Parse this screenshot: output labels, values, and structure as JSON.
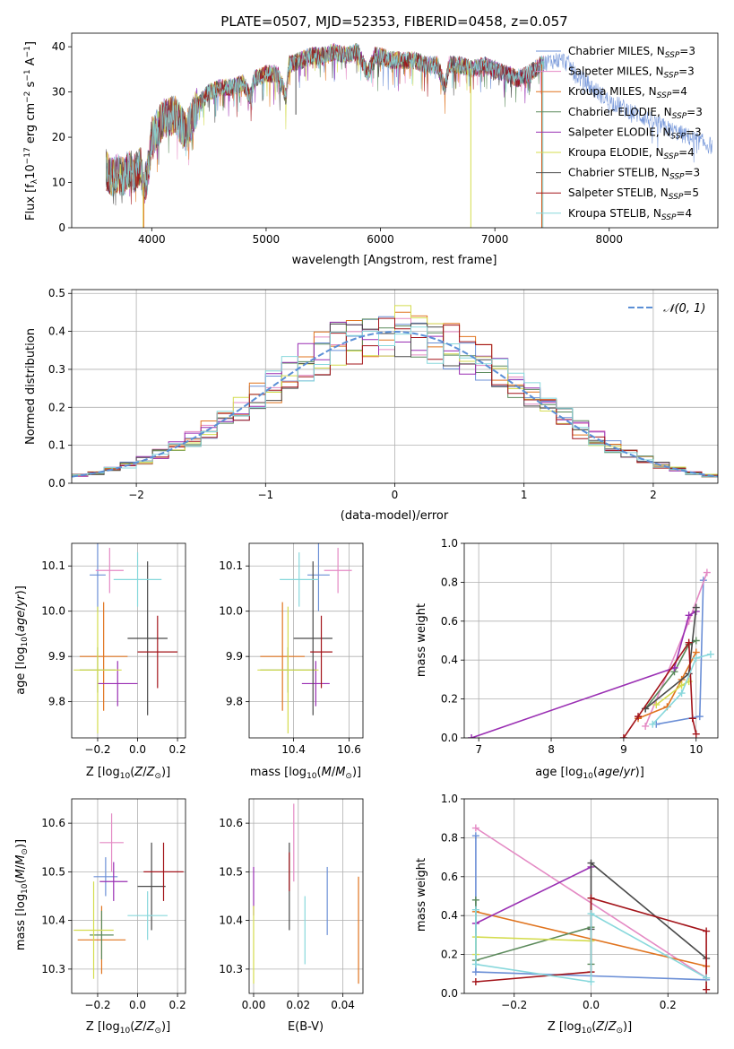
{
  "figure_title": "PLATE=0507, MJD=52353, FIBERID=0458, z=0.057",
  "colors": {
    "Chabrier MILES": "#6b8fd6",
    "Salpeter MILES": "#e48ac4",
    "Kroupa MILES": "#e0741f",
    "Chabrier ELODIE": "#5b8a5b",
    "Salpeter ELODIE": "#9a2fb3",
    "Kroupa ELODIE": "#d4dc4e",
    "Chabrier STELIB": "#4a4a4a",
    "Salpeter STELIB": "#a3141a",
    "Kroupa STELIB": "#88d8dc"
  },
  "chart_data": [
    {
      "id": "spectrum",
      "type": "line",
      "xlabel": "wavelength [Angstrom, rest frame]",
      "ylabel": "Flux [f_λ10^-17 erg cm^-2 s^-1 A^-1]",
      "xlim": [
        3300,
        8950
      ],
      "ylim": [
        0,
        43
      ],
      "xticks": [
        4000,
        5000,
        6000,
        7000,
        8000
      ],
      "yticks": [
        0,
        10,
        20,
        30,
        40
      ],
      "grid": false,
      "legend": "top-right",
      "continuum": [
        [
          3600,
          13
        ],
        [
          3650,
          11
        ],
        [
          3700,
          12
        ],
        [
          3750,
          11
        ],
        [
          3800,
          13
        ],
        [
          3850,
          12
        ],
        [
          3900,
          14
        ],
        [
          3930,
          9
        ],
        [
          3960,
          11
        ],
        [
          4000,
          20
        ],
        [
          4100,
          24
        ],
        [
          4200,
          25
        ],
        [
          4300,
          21
        ],
        [
          4400,
          27
        ],
        [
          4500,
          30
        ],
        [
          4600,
          31
        ],
        [
          4700,
          31
        ],
        [
          4800,
          32
        ],
        [
          4861,
          29
        ],
        [
          4900,
          33
        ],
        [
          5000,
          34
        ],
        [
          5100,
          34
        ],
        [
          5175,
          29
        ],
        [
          5200,
          36
        ],
        [
          5300,
          37
        ],
        [
          5400,
          38
        ],
        [
          5500,
          38
        ],
        [
          5600,
          39
        ],
        [
          5700,
          38
        ],
        [
          5800,
          39
        ],
        [
          5890,
          34
        ],
        [
          5950,
          38
        ],
        [
          6000,
          38
        ],
        [
          6100,
          37
        ],
        [
          6200,
          37
        ],
        [
          6300,
          37
        ],
        [
          6400,
          36
        ],
        [
          6500,
          36
        ],
        [
          6563,
          31
        ],
        [
          6600,
          36
        ],
        [
          6700,
          36
        ],
        [
          6800,
          35
        ],
        [
          6900,
          36
        ],
        [
          7000,
          35
        ],
        [
          7100,
          34
        ],
        [
          7200,
          33
        ],
        [
          7300,
          34
        ],
        [
          7400,
          36
        ],
        [
          7500,
          37
        ],
        [
          7600,
          37
        ],
        [
          7650,
          36
        ],
        [
          7700,
          34
        ],
        [
          8000,
          28
        ],
        [
          8500,
          22
        ],
        [
          8900,
          18
        ]
      ],
      "legend_entries": [
        "Chabrier MILES, N_SSP=3",
        "Salpeter MILES, N_SSP=3",
        "Kroupa MILES, N_SSP=4",
        "Chabrier ELODIE, N_SSP=3",
        "Salpeter ELODIE, N_SSP=3",
        "Kroupa ELODIE, N_SSP=4",
        "Chabrier STELIB, N_SSP=3",
        "Salpeter STELIB, N_SSP=5",
        "Kroupa STELIB, N_SSP=4"
      ]
    },
    {
      "id": "residuals",
      "type": "line",
      "xlabel": "(data-model)/error",
      "ylabel": "Normed distribution",
      "xlim": [
        -2.5,
        2.5
      ],
      "ylim": [
        0,
        0.51
      ],
      "xticks": [
        -2,
        -1,
        0,
        1,
        2
      ],
      "yticks": [
        0.0,
        0.1,
        0.2,
        0.3,
        0.4,
        0.5
      ],
      "grid": true,
      "legend": "top-right",
      "legend_entries": [
        "𝒩(0, 1)"
      ]
    },
    {
      "id": "age_vs_Z",
      "type": "scatter",
      "xlabel": "Z [log10(Z/Z⊙)]",
      "ylabel": "age  [log10(age/yr)]",
      "xlim": [
        -0.33,
        0.24
      ],
      "ylim": [
        9.72,
        10.15
      ],
      "xticks": [
        -0.2,
        0.0,
        0.2
      ],
      "yticks": [
        9.8,
        9.9,
        10.0,
        10.1
      ],
      "grid": true,
      "points": [
        {
          "model": "Chabrier MILES",
          "x": -0.2,
          "y": 10.08,
          "xerr": 0.04,
          "yerr": 0.08
        },
        {
          "model": "Salpeter MILES",
          "x": -0.14,
          "y": 10.09,
          "xerr": 0.07,
          "yerr": 0.05
        },
        {
          "model": "Kroupa MILES",
          "x": -0.17,
          "y": 9.9,
          "xerr": 0.12,
          "yerr": 0.12
        },
        {
          "model": "Chabrier ELODIE",
          "x": -0.2,
          "y": 9.87,
          "xerr": 0.09,
          "yerr": 0.05
        },
        {
          "model": "Salpeter ELODIE",
          "x": -0.1,
          "y": 9.84,
          "xerr": 0.1,
          "yerr": 0.05
        },
        {
          "model": "Kroupa ELODIE",
          "x": -0.2,
          "y": 9.87,
          "xerr": 0.12,
          "yerr": 0.14
        },
        {
          "model": "Chabrier STELIB",
          "x": 0.05,
          "y": 9.94,
          "xerr": 0.1,
          "yerr": 0.17
        },
        {
          "model": "Salpeter STELIB",
          "x": 0.1,
          "y": 9.91,
          "xerr": 0.1,
          "yerr": 0.08
        },
        {
          "model": "Kroupa STELIB",
          "x": 0.0,
          "y": 10.07,
          "xerr": 0.12,
          "yerr": 0.06
        }
      ]
    },
    {
      "id": "age_vs_mass",
      "type": "scatter",
      "xlabel": "mass [log10(M/M⊙)]",
      "ylabel": "",
      "xlim": [
        10.24,
        10.65
      ],
      "ylim": [
        9.72,
        10.15
      ],
      "xticks": [
        10.4,
        10.6
      ],
      "yticks": [
        9.8,
        9.9,
        10.0,
        10.1
      ],
      "grid": true,
      "points": [
        {
          "model": "Chabrier MILES",
          "x": 10.49,
          "y": 10.08,
          "xerr": 0.04,
          "yerr": 0.08
        },
        {
          "model": "Salpeter MILES",
          "x": 10.56,
          "y": 10.09,
          "xerr": 0.05,
          "yerr": 0.05
        },
        {
          "model": "Kroupa MILES",
          "x": 10.36,
          "y": 9.9,
          "xerr": 0.08,
          "yerr": 0.12
        },
        {
          "model": "Chabrier ELODIE",
          "x": 10.38,
          "y": 9.87,
          "xerr": 0.1,
          "yerr": 0.05
        },
        {
          "model": "Salpeter ELODIE",
          "x": 10.48,
          "y": 9.84,
          "xerr": 0.05,
          "yerr": 0.05
        },
        {
          "model": "Kroupa ELODIE",
          "x": 10.38,
          "y": 9.87,
          "xerr": 0.11,
          "yerr": 0.14
        },
        {
          "model": "Chabrier STELIB",
          "x": 10.47,
          "y": 9.94,
          "xerr": 0.07,
          "yerr": 0.17
        },
        {
          "model": "Salpeter STELIB",
          "x": 10.5,
          "y": 9.91,
          "xerr": 0.04,
          "yerr": 0.08
        },
        {
          "model": "Kroupa STELIB",
          "x": 10.42,
          "y": 10.07,
          "xerr": 0.07,
          "yerr": 0.06
        }
      ]
    },
    {
      "id": "weight_vs_age",
      "type": "line",
      "xlabel": "age  [log10(age/yr)]",
      "ylabel": "mass weight",
      "xlim": [
        6.8,
        10.3
      ],
      "ylim": [
        0,
        1.0
      ],
      "xticks": [
        7,
        8,
        9,
        10
      ],
      "yticks": [
        0.0,
        0.2,
        0.4,
        0.6,
        0.8,
        1.0
      ],
      "grid": true,
      "series": [
        {
          "model": "Chabrier MILES",
          "x": [
            9.45,
            10.05,
            10.1
          ],
          "y": [
            0.07,
            0.11,
            0.81
          ]
        },
        {
          "model": "Salpeter MILES",
          "x": [
            9.3,
            9.9,
            10.15
          ],
          "y": [
            0.06,
            0.6,
            0.85
          ]
        },
        {
          "model": "Kroupa MILES",
          "x": [
            9.2,
            9.6,
            9.8,
            10.0
          ],
          "y": [
            0.1,
            0.16,
            0.3,
            0.44
          ]
        },
        {
          "model": "Chabrier ELODIE",
          "x": [
            9.3,
            9.7,
            9.9,
            10.0
          ],
          "y": [
            0.15,
            0.34,
            0.48,
            0.5
          ]
        },
        {
          "model": "Salpeter ELODIE",
          "x": [
            6.9,
            9.7,
            9.9,
            10.0
          ],
          "y": [
            0.0,
            0.36,
            0.63,
            0.65
          ]
        },
        {
          "model": "Kroupa ELODIE",
          "x": [
            9.45,
            9.8,
            9.9
          ],
          "y": [
            0.17,
            0.27,
            0.29
          ]
        },
        {
          "model": "Chabrier STELIB",
          "x": [
            9.3,
            9.9,
            10.0
          ],
          "y": [
            0.15,
            0.33,
            0.67
          ]
        },
        {
          "model": "Salpeter STELIB",
          "x": [
            9.0,
            9.2,
            9.9,
            9.95,
            10.0
          ],
          "y": [
            0.0,
            0.11,
            0.49,
            0.1,
            0.02
          ]
        },
        {
          "model": "Kroupa STELIB",
          "x": [
            9.4,
            9.8,
            10.0,
            10.2
          ],
          "y": [
            0.07,
            0.23,
            0.41,
            0.43
          ]
        }
      ]
    },
    {
      "id": "mass_vs_Z",
      "type": "scatter",
      "xlabel": "Z [log10(Z/Z⊙)]",
      "ylabel": "mass [log10(M/M⊙)]",
      "xlim": [
        -0.33,
        0.24
      ],
      "ylim": [
        10.25,
        10.65
      ],
      "xticks": [
        -0.2,
        0.0,
        0.2
      ],
      "yticks": [
        10.3,
        10.4,
        10.5,
        10.6
      ],
      "grid": true,
      "points": [
        {
          "model": "Chabrier MILES",
          "x": -0.16,
          "y": 10.49,
          "xerr": 0.06,
          "yerr": 0.04
        },
        {
          "model": "Salpeter MILES",
          "x": -0.13,
          "y": 10.56,
          "xerr": 0.06,
          "yerr": 0.06
        },
        {
          "model": "Kroupa MILES",
          "x": -0.18,
          "y": 10.36,
          "xerr": 0.12,
          "yerr": 0.07
        },
        {
          "model": "Chabrier ELODIE",
          "x": -0.18,
          "y": 10.37,
          "xerr": 0.06,
          "yerr": 0.05
        },
        {
          "model": "Salpeter ELODIE",
          "x": -0.12,
          "y": 10.48,
          "xerr": 0.07,
          "yerr": 0.04
        },
        {
          "model": "Kroupa ELODIE",
          "x": -0.22,
          "y": 10.38,
          "xerr": 0.1,
          "yerr": 0.1
        },
        {
          "model": "Chabrier STELIB",
          "x": 0.07,
          "y": 10.47,
          "xerr": 0.07,
          "yerr": 0.09
        },
        {
          "model": "Salpeter STELIB",
          "x": 0.13,
          "y": 10.5,
          "xerr": 0.1,
          "yerr": 0.06
        },
        {
          "model": "Kroupa STELIB",
          "x": 0.05,
          "y": 10.41,
          "xerr": 0.1,
          "yerr": 0.05
        }
      ]
    },
    {
      "id": "mass_vs_EBV",
      "type": "scatter",
      "xlabel": "E(B-V)",
      "ylabel": "",
      "xlim": [
        -0.002,
        0.049
      ],
      "ylim": [
        10.25,
        10.65
      ],
      "xticks": [
        0.0,
        0.02,
        0.04
      ],
      "yticks": [
        10.3,
        10.4,
        10.5,
        10.6
      ],
      "grid": true,
      "points": [
        {
          "model": "Chabrier MILES",
          "x": 0.033,
          "y": 10.44,
          "yerr": 0.07
        },
        {
          "model": "Salpeter MILES",
          "x": 0.018,
          "y": 10.56,
          "yerr": 0.08
        },
        {
          "model": "Kroupa MILES",
          "x": 0.047,
          "y": 10.38,
          "yerr": 0.11
        },
        {
          "model": "Salpeter ELODIE",
          "x": 0.0,
          "y": 10.46,
          "yerr": 0.05
        },
        {
          "model": "Kroupa ELODIE",
          "x": 0.0,
          "y": 10.35,
          "yerr": 0.08
        },
        {
          "model": "Chabrier STELIB",
          "x": 0.016,
          "y": 10.47,
          "yerr": 0.09
        },
        {
          "model": "Salpeter STELIB",
          "x": 0.016,
          "y": 10.5,
          "yerr": 0.04
        },
        {
          "model": "Kroupa STELIB",
          "x": 0.023,
          "y": 10.38,
          "yerr": 0.07
        }
      ]
    },
    {
      "id": "weight_vs_Z",
      "type": "line",
      "xlabel": "Z [log10(Z/Z⊙)]",
      "ylabel": "mass weight",
      "xlim": [
        -0.33,
        0.33
      ],
      "ylim": [
        0,
        1.0
      ],
      "xticks": [
        -0.2,
        0.0,
        0.2
      ],
      "yticks": [
        0.0,
        0.2,
        0.4,
        0.6,
        0.8,
        1.0
      ],
      "grid": true,
      "series": [
        {
          "model": "Chabrier MILES",
          "x": [
            -0.3,
            -0.3,
            0.3
          ],
          "y": [
            0.81,
            0.11,
            0.07
          ]
        },
        {
          "model": "Salpeter MILES",
          "x": [
            -0.3,
            0.3
          ],
          "y": [
            0.85,
            0.08
          ]
        },
        {
          "model": "Kroupa MILES",
          "x": [
            -0.3,
            0.3
          ],
          "y": [
            0.42,
            0.14
          ]
        },
        {
          "model": "Chabrier ELODIE",
          "x": [
            -0.3,
            -0.3,
            0.0,
            0.0
          ],
          "y": [
            0.48,
            0.17,
            0.34,
            0.15
          ]
        },
        {
          "model": "Salpeter ELODIE",
          "x": [
            -0.3,
            0.0
          ],
          "y": [
            0.36,
            0.65
          ]
        },
        {
          "model": "Kroupa ELODIE",
          "x": [
            -0.3,
            -0.3,
            0.0
          ],
          "y": [
            0.2,
            0.29,
            0.27
          ]
        },
        {
          "model": "Chabrier STELIB",
          "x": [
            0.0,
            0.0,
            0.3
          ],
          "y": [
            0.33,
            0.67,
            0.18
          ]
        },
        {
          "model": "Salpeter STELIB",
          "x": [
            -0.3,
            0.0,
            0.0,
            0.3,
            0.3
          ],
          "y": [
            0.06,
            0.11,
            0.49,
            0.32,
            0.02
          ]
        },
        {
          "model": "Kroupa STELIB",
          "x": [
            -0.3,
            -0.3,
            0.0,
            0.0,
            0.3
          ],
          "y": [
            0.43,
            0.15,
            0.06,
            0.41,
            0.08
          ]
        }
      ]
    }
  ]
}
